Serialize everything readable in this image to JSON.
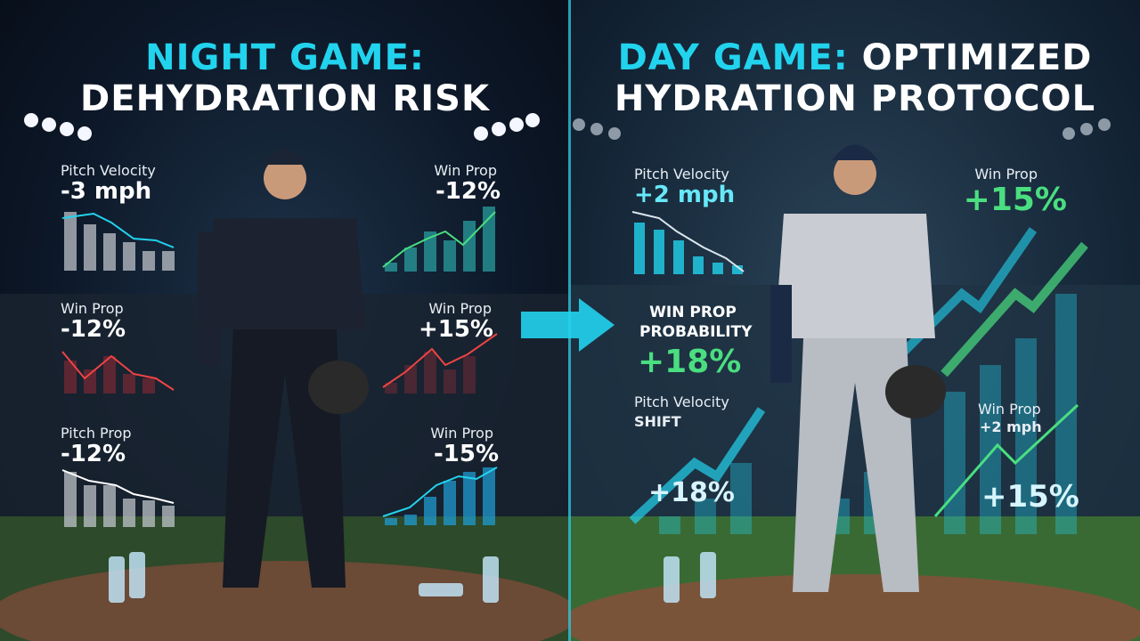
{
  "left": {
    "title_highlight": "NIGHT GAME:",
    "title": "DEHYDRATION RISK",
    "stats": [
      {
        "label": "Pitch Velocity",
        "value": "-3 mph"
      },
      {
        "label": "Win Prop",
        "value": "-12%"
      },
      {
        "label": "Win Prop",
        "value": "-12%"
      },
      {
        "label": "Win Prop",
        "value": "+15%"
      },
      {
        "label": "Pitch Prop",
        "value": "-12%"
      },
      {
        "label": "Win Prop",
        "value": "-15%"
      }
    ]
  },
  "right": {
    "title_highlight": "DAY GAME:",
    "title_rest": "OPTIMIZED",
    "title": "HYDRATION PROTOCOL",
    "stats": [
      {
        "label": "Pitch Velocity",
        "value": "+2 mph"
      },
      {
        "label": "Win Prop",
        "value": "+15%"
      },
      {
        "label": "WIN PROP PROBABILITY",
        "value": "+18%"
      },
      {
        "label": "Pitch Velocity",
        "sublabel": "SHIFT",
        "value": "+18%"
      },
      {
        "label": "Win Prop",
        "sublabel": "+2 mph",
        "value": "+15%"
      }
    ]
  }
}
